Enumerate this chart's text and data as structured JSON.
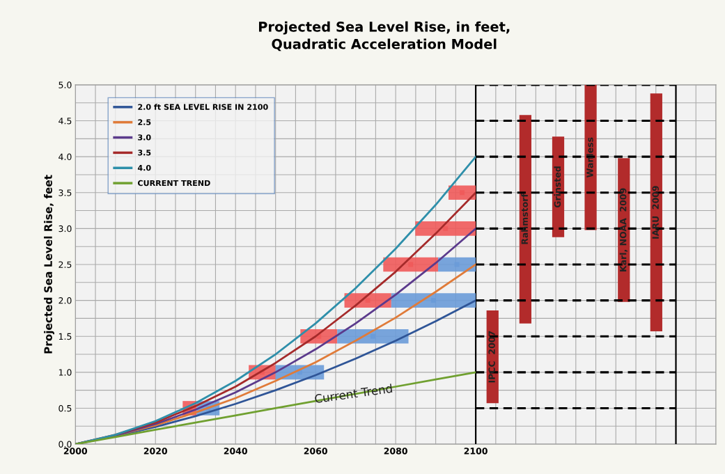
{
  "chart_data": {
    "type": "line",
    "title": "Projected Sea Level Rise, in feet,\nQuadratic Acceleration Model",
    "ylabel": "Projected Sea Level Rise, feet",
    "xlim": [
      2000,
      2160
    ],
    "ylim": [
      0,
      5
    ],
    "xticks": [
      {
        "value": 2000,
        "label": "2000"
      },
      {
        "value": 2005,
        "label": null
      },
      {
        "value": 2010,
        "label": null
      },
      {
        "value": 2015,
        "label": null
      },
      {
        "value": 2020,
        "label": "2020"
      },
      {
        "value": 2025,
        "label": null
      },
      {
        "value": 2030,
        "label": null
      },
      {
        "value": 2035,
        "label": null
      },
      {
        "value": 2040,
        "label": "2040"
      },
      {
        "value": 2045,
        "label": null
      },
      {
        "value": 2050,
        "label": null
      },
      {
        "value": 2055,
        "label": null
      },
      {
        "value": 2060,
        "label": "2060"
      },
      {
        "value": 2065,
        "label": null
      },
      {
        "value": 2070,
        "label": null
      },
      {
        "value": 2075,
        "label": null
      },
      {
        "value": 2080,
        "label": "2080"
      },
      {
        "value": 2085,
        "label": null
      },
      {
        "value": 2090,
        "label": null
      },
      {
        "value": 2095,
        "label": null
      },
      {
        "value": 2100,
        "label": "2100"
      },
      {
        "value": 2105,
        "label": null
      },
      {
        "value": 2110,
        "label": null
      },
      {
        "value": 2115,
        "label": null
      },
      {
        "value": 2120,
        "label": null
      },
      {
        "value": 2125,
        "label": null
      },
      {
        "value": 2130,
        "label": null
      },
      {
        "value": 2135,
        "label": null
      },
      {
        "value": 2140,
        "label": null
      },
      {
        "value": 2145,
        "label": null
      },
      {
        "value": 2150,
        "label": null
      },
      {
        "value": 2155,
        "label": null
      },
      {
        "value": 2160,
        "label": null
      }
    ],
    "yticks": [
      {
        "value": 0,
        "label": "0.0"
      },
      {
        "value": 0.25,
        "label": null
      },
      {
        "value": 0.5,
        "label": "0.5"
      },
      {
        "value": 0.75,
        "label": null
      },
      {
        "value": 1.0,
        "label": "1.0"
      },
      {
        "value": 1.25,
        "label": null
      },
      {
        "value": 1.5,
        "label": "1.5"
      },
      {
        "value": 1.75,
        "label": null
      },
      {
        "value": 2.0,
        "label": "2.0"
      },
      {
        "value": 2.25,
        "label": null
      },
      {
        "value": 2.5,
        "label": "2.5"
      },
      {
        "value": 2.75,
        "label": null
      },
      {
        "value": 3.0,
        "label": "3.0"
      },
      {
        "value": 3.25,
        "label": null
      },
      {
        "value": 3.5,
        "label": "3.5"
      },
      {
        "value": 3.75,
        "label": null
      },
      {
        "value": 4.0,
        "label": "4.0"
      },
      {
        "value": 4.25,
        "label": null
      },
      {
        "value": 4.5,
        "label": "4.5"
      },
      {
        "value": 4.75,
        "label": null
      },
      {
        "value": 5.0,
        "label": "5.0"
      }
    ],
    "grid": true,
    "legend": "top left",
    "series": [
      {
        "name": "2.0 ft SEA LEVEL RISE IN 2100",
        "color": "#2f5597",
        "x": [
          2000,
          2010,
          2020,
          2030,
          2040,
          2050,
          2060,
          2070,
          2080,
          2090,
          2100
        ],
        "values": [
          0,
          0.11,
          0.24,
          0.39,
          0.56,
          0.75,
          0.96,
          1.19,
          1.44,
          1.71,
          2.0
        ]
      },
      {
        "name": "2.5",
        "color": "#e07b39",
        "x": [
          2000,
          2010,
          2020,
          2030,
          2040,
          2050,
          2060,
          2070,
          2080,
          2090,
          2100
        ],
        "values": [
          0,
          0.12,
          0.26,
          0.44,
          0.64,
          0.88,
          1.14,
          1.44,
          1.76,
          2.12,
          2.5
        ]
      },
      {
        "name": "3.0",
        "color": "#5b3a8c",
        "x": [
          2000,
          2010,
          2020,
          2030,
          2040,
          2050,
          2060,
          2070,
          2080,
          2090,
          2100
        ],
        "values": [
          0,
          0.12,
          0.28,
          0.48,
          0.72,
          1.0,
          1.32,
          1.68,
          2.08,
          2.52,
          3.0
        ]
      },
      {
        "name": "3.5",
        "color": "#a52a2a",
        "x": [
          2000,
          2010,
          2020,
          2030,
          2040,
          2050,
          2060,
          2070,
          2080,
          2090,
          2100
        ],
        "values": [
          0,
          0.13,
          0.3,
          0.53,
          0.8,
          1.13,
          1.5,
          1.93,
          2.4,
          2.93,
          3.5
        ]
      },
      {
        "name": "4.0",
        "color": "#2e8faa",
        "x": [
          2000,
          2010,
          2020,
          2030,
          2040,
          2050,
          2060,
          2070,
          2080,
          2090,
          2100
        ],
        "values": [
          0,
          0.13,
          0.32,
          0.57,
          0.88,
          1.25,
          1.68,
          2.17,
          2.72,
          3.33,
          4.0
        ]
      },
      {
        "name": "CURRENT TREND",
        "color": "#70a030",
        "x": [
          2000,
          2010,
          2020,
          2030,
          2040,
          2050,
          2060,
          2070,
          2080,
          2090,
          2100
        ],
        "values": [
          0,
          0.1,
          0.2,
          0.3,
          0.4,
          0.5,
          0.6,
          0.7,
          0.8,
          0.9,
          1.0
        ]
      },
      {
        "type": "scatter",
        "marker": "square",
        "color": "#f05a5a",
        "x": [
          2028.55,
          2046.65,
          2060.8,
          2073.05,
          2083.75,
          2092.45,
          2096.6
        ],
        "values": [
          0.5,
          1.0,
          1.5,
          2.0,
          2.5,
          3.0,
          3.5
        ],
        "xerrors": [
          [
            2026.8,
            2030.3
          ],
          [
            2043.3,
            2050.0
          ],
          [
            2056.2,
            2065.4
          ],
          [
            2067.2,
            2078.9
          ],
          [
            2076.9,
            2090.6
          ],
          [
            2084.9,
            2100
          ],
          [
            2093.2,
            2100
          ]
        ]
      },
      {
        "type": "scatter",
        "marker": "square",
        "color": "#6a9bd8",
        "x": [
          2033.15,
          2056.05,
          2074.3,
          2089.45,
          2095.3
        ],
        "values": [
          0.5,
          1.0,
          1.5,
          2.0,
          2.5
        ],
        "xerrors": [
          [
            2030.3,
            2036.0
          ],
          [
            2050.0,
            2062.1
          ],
          [
            2065.4,
            2083.2
          ],
          [
            2078.9,
            2100
          ],
          [
            2090.6,
            2100
          ]
        ]
      },
      {
        "type": "bar",
        "color": "#b22b2b",
        "x": [
          2104.2,
          2112.4,
          2120.6,
          2128.7,
          2137.0,
          2145.1
        ],
        "base": [
          0.57,
          1.68,
          2.88,
          2.98,
          1.98,
          1.57
        ],
        "values": [
          1.29,
          2.9,
          1.4,
          2.02,
          2.0,
          3.31
        ],
        "value_labels": [
          "IPCC  2007",
          "Rahmstorf",
          "Grinsted",
          "Wanless",
          "Karl, NOAA  2009",
          "IARU  2009"
        ]
      },
      {
        "color": "#000000",
        "line_style": "dashed",
        "x": [
          2100,
          2150
        ],
        "values": [
          0.5,
          0.5
        ]
      },
      {
        "color": "#000000",
        "line_style": "dashed",
        "x": [
          2100,
          2150
        ],
        "values": [
          1.0,
          1.0
        ]
      },
      {
        "color": "#000000",
        "line_style": "dashed",
        "x": [
          2100,
          2150
        ],
        "values": [
          1.5,
          1.5
        ]
      },
      {
        "color": "#000000",
        "line_style": "dashed",
        "x": [
          2100,
          2150
        ],
        "values": [
          2.0,
          2.0
        ]
      },
      {
        "color": "#000000",
        "line_style": "dashed",
        "x": [
          2100,
          2150
        ],
        "values": [
          2.5,
          2.5
        ]
      },
      {
        "color": "#000000",
        "line_style": "dashed",
        "x": [
          2100,
          2150
        ],
        "values": [
          3.0,
          3.0
        ]
      },
      {
        "color": "#000000",
        "line_style": "dashed",
        "x": [
          2100,
          2150
        ],
        "values": [
          3.5,
          3.5
        ]
      },
      {
        "color": "#000000",
        "line_style": "dashed",
        "x": [
          2100,
          2150
        ],
        "values": [
          4.0,
          4.0
        ]
      },
      {
        "color": "#000000",
        "line_style": "dashed",
        "x": [
          2100,
          2150
        ],
        "values": [
          4.5,
          4.5
        ]
      },
      {
        "color": "#000000",
        "line_style": "dashed",
        "x": [
          2100,
          2150
        ],
        "values": [
          5.0,
          5.0
        ]
      }
    ],
    "ref_lines": [
      {
        "axis": "x",
        "value": 2100,
        "color": "#000000"
      },
      {
        "axis": "x",
        "value": 2150,
        "color": "#000000"
      }
    ],
    "annotations": [
      "Current Trend"
    ]
  }
}
